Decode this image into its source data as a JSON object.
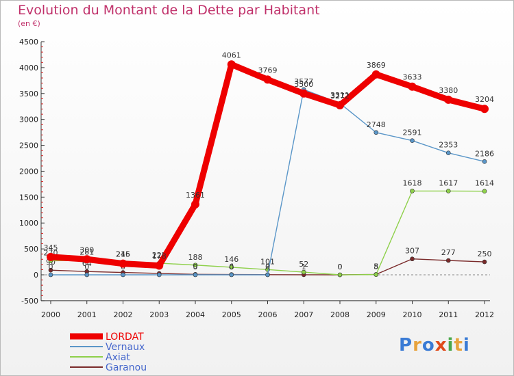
{
  "title": "Evolution du Montant de la Dette par Habitant",
  "subtitle": "(en €)",
  "logo": {
    "text": "Proxiti",
    "colors": [
      "#3a7bd5",
      "#e8a33d",
      "#3a7bd5",
      "#e04a1a",
      "#4aa84a",
      "#e8a33d",
      "#3a7bd5"
    ]
  },
  "chart_data": {
    "type": "line",
    "x": [
      "2000",
      "2001",
      "2002",
      "2003",
      "2004",
      "2005",
      "2006",
      "2007",
      "2008",
      "2009",
      "2010",
      "2011",
      "2012"
    ],
    "ylim": [
      -500,
      4500
    ],
    "yticks": [
      -500,
      0,
      500,
      1000,
      1500,
      2000,
      2500,
      3000,
      3500,
      4000,
      4500
    ],
    "grid": false,
    "legend_position": "bottom-left",
    "series": [
      {
        "name": "Garanou",
        "color": "#7a2a2a",
        "values": [
          90,
          64,
          45,
          27,
          9,
          6,
          3,
          1,
          0,
          8,
          307,
          277,
          250
        ]
      },
      {
        "name": "Axiat",
        "color": "#8ed04a",
        "values": [
          270,
          281,
          245,
          225,
          188,
          146,
          101,
          52,
          0,
          5,
          1618,
          1617,
          1614
        ]
      },
      {
        "name": "Vernaux",
        "color": "#5a96c8",
        "values": [
          0,
          0,
          0,
          0,
          0,
          0,
          0,
          3577,
          3311,
          2748,
          2591,
          2353,
          2186
        ]
      },
      {
        "name": "LORDAT",
        "color": "#ee0000",
        "values": [
          345,
          300,
          216,
          178,
          1361,
          4061,
          3769,
          3500,
          3272,
          3869,
          3633,
          3380,
          3204
        ]
      }
    ]
  }
}
